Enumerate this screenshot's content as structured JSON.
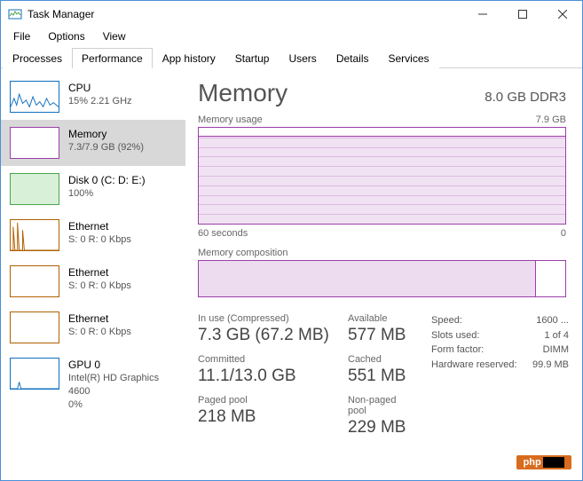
{
  "window": {
    "title": "Task Manager"
  },
  "menu": {
    "file": "File",
    "options": "Options",
    "view": "View"
  },
  "tabs": {
    "processes": "Processes",
    "performance": "Performance",
    "apphistory": "App history",
    "startup": "Startup",
    "users": "Users",
    "details": "Details",
    "services": "Services"
  },
  "sidebar": {
    "cpu": {
      "title": "CPU",
      "sub": "15% 2.21 GHz"
    },
    "memory": {
      "title": "Memory",
      "sub": "7.3/7.9 GB (92%)"
    },
    "disk": {
      "title": "Disk 0 (C: D: E:)",
      "sub": "100%"
    },
    "eth1": {
      "title": "Ethernet",
      "sub": "S: 0 R: 0 Kbps"
    },
    "eth2": {
      "title": "Ethernet",
      "sub": "S: 0 R: 0 Kbps"
    },
    "eth3": {
      "title": "Ethernet",
      "sub": "S: 0 R: 0 Kbps"
    },
    "gpu": {
      "title": "GPU 0",
      "sub1": "Intel(R) HD Graphics 4600",
      "sub2": "0%"
    }
  },
  "main": {
    "title": "Memory",
    "subtitle": "8.0 GB DDR3",
    "usage": {
      "label": "Memory usage",
      "max": "7.9 GB",
      "axis_left": "60 seconds",
      "axis_right": "0",
      "fill_pct": 92,
      "gridlines": 9
    },
    "composition": {
      "label": "Memory composition",
      "fill_pct": 92
    },
    "stats": {
      "inuse_label": "In use (Compressed)",
      "inuse": "7.3 GB (67.2 MB)",
      "available_label": "Available",
      "available": "577 MB",
      "committed_label": "Committed",
      "committed": "11.1/13.0 GB",
      "cached_label": "Cached",
      "cached": "551 MB",
      "paged_label": "Paged pool",
      "paged": "218 MB",
      "nonpaged_label": "Non-paged pool",
      "nonpaged": "229 MB",
      "speed_label": "Speed:",
      "speed": "1600 ...",
      "slots_label": "Slots used:",
      "slots": "1 of 4",
      "form_label": "Form factor:",
      "form": "DIMM",
      "hw_label": "Hardware reserved:",
      "hw": "99.9 MB"
    }
  },
  "colors": {
    "accent": "#9b3fa8",
    "cpu": "#1070c0",
    "disk": "#4ca64c",
    "eth": "#b06000"
  },
  "watermark": "php"
}
